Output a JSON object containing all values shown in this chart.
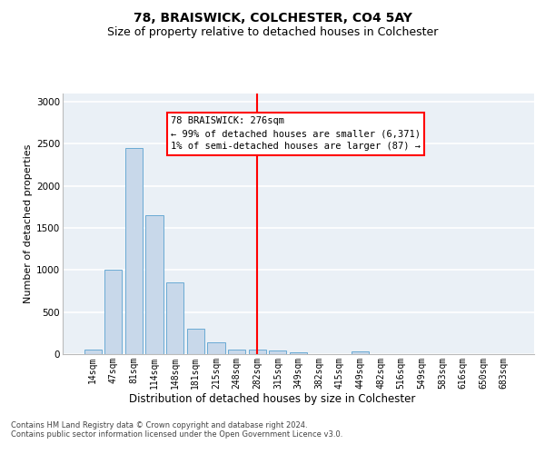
{
  "title1": "78, BRAISWICK, COLCHESTER, CO4 5AY",
  "title2": "Size of property relative to detached houses in Colchester",
  "xlabel": "Distribution of detached houses by size in Colchester",
  "ylabel": "Number of detached properties",
  "categories": [
    "14sqm",
    "47sqm",
    "81sqm",
    "114sqm",
    "148sqm",
    "181sqm",
    "215sqm",
    "248sqm",
    "282sqm",
    "315sqm",
    "349sqm",
    "382sqm",
    "415sqm",
    "449sqm",
    "482sqm",
    "516sqm",
    "549sqm",
    "583sqm",
    "616sqm",
    "650sqm",
    "683sqm"
  ],
  "values": [
    50,
    1000,
    2450,
    1650,
    850,
    300,
    140,
    50,
    50,
    40,
    20,
    0,
    0,
    30,
    0,
    0,
    0,
    0,
    0,
    0,
    0
  ],
  "bar_color": "#c8d8ea",
  "bar_edge_color": "#6aaad4",
  "vline_index": 8,
  "vline_color": "red",
  "annotation_text": "78 BRAISWICK: 276sqm\n← 99% of detached houses are smaller (6,371)\n1% of semi-detached houses are larger (87) →",
  "ylim": [
    0,
    3100
  ],
  "yticks": [
    0,
    500,
    1000,
    1500,
    2000,
    2500,
    3000
  ],
  "footer_line1": "Contains HM Land Registry data © Crown copyright and database right 2024.",
  "footer_line2": "Contains public sector information licensed under the Open Government Licence v3.0.",
  "bg_color": "#eaf0f6",
  "title1_fontsize": 10,
  "title2_fontsize": 9,
  "xlabel_fontsize": 8.5,
  "ylabel_fontsize": 8,
  "tick_fontsize": 7,
  "footer_fontsize": 6,
  "ann_fontsize": 7.5
}
